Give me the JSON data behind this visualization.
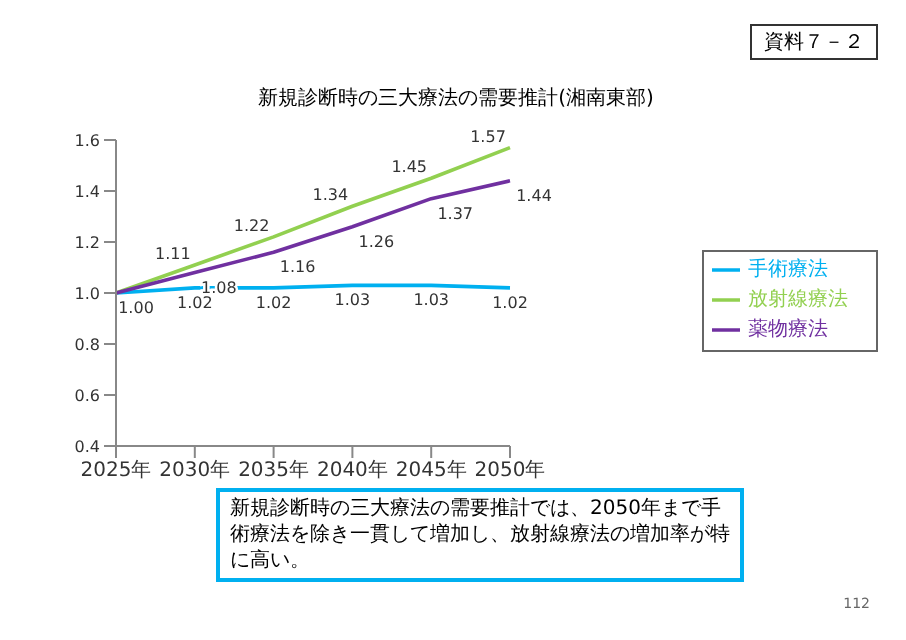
{
  "chart_data": {
    "type": "line",
    "title": "新規診断時の三大療法の需要推計(湘南東部)",
    "categories": [
      "2025年",
      "2030年",
      "2035年",
      "2040年",
      "2045年",
      "2050年"
    ],
    "series": [
      {
        "name": "手術療法",
        "color": "#00b0f0",
        "values": [
          1.0,
          1.02,
          1.02,
          1.03,
          1.03,
          1.02
        ],
        "value_labels": [
          "1.00",
          "1.02",
          "1.02",
          "1.03",
          "1.03",
          "1.02"
        ]
      },
      {
        "name": "放射線療法",
        "color": "#92d050",
        "values": [
          1.0,
          1.11,
          1.22,
          1.34,
          1.45,
          1.57
        ],
        "value_labels": [
          null,
          "1.11",
          "1.22",
          "1.34",
          "1.45",
          "1.57"
        ]
      },
      {
        "name": "薬物療法",
        "color": "#7030a0",
        "values": [
          1.0,
          1.08,
          1.16,
          1.26,
          1.37,
          1.44
        ],
        "value_labels": [
          null,
          "1.08",
          "1.16",
          "1.26",
          "1.37",
          "1.44"
        ]
      }
    ],
    "ylim": [
      0.4,
      1.6
    ],
    "yticks": [
      {
        "value": 0.4,
        "label": "0.4"
      },
      {
        "value": 0.6,
        "label": "0.6"
      },
      {
        "value": 0.8,
        "label": "0.8"
      },
      {
        "value": 1.0,
        "label": "1.0"
      },
      {
        "value": 1.2,
        "label": "1.2"
      },
      {
        "value": 1.4,
        "label": "1.4"
      },
      {
        "value": 1.6,
        "label": "1.6"
      }
    ],
    "grid": false,
    "legend": "right",
    "marker": "none",
    "line_style": "solid",
    "annotations": [
      "資料７－２",
      "新規診断時の三大療法の需要推計では、2050年まで手術療法を除き一貫して増加し、放射線療法の増加率が特に高い。",
      "112"
    ]
  }
}
